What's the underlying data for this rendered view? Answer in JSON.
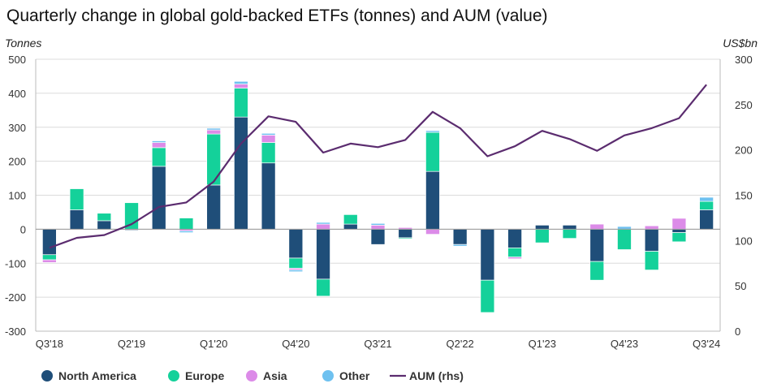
{
  "chart_data": {
    "type": "bar",
    "title": "Quarterly change in global gold-backed ETFs (tonnes) and AUM (value)",
    "ylabel_left": "Tonnes",
    "ylabel_right": "US$bn",
    "ylim_left": [
      -300,
      500
    ],
    "yticks_left": [
      -300,
      -200,
      -100,
      0,
      100,
      200,
      300,
      400,
      500
    ],
    "ylim_right": [
      0,
      300
    ],
    "yticks_right": [
      0,
      50,
      100,
      150,
      200,
      250,
      300
    ],
    "grid": true,
    "legend_position": "bottom",
    "categories": [
      "Q3'18",
      "Q4'18",
      "Q1'19",
      "Q2'19",
      "Q3'19",
      "Q4'19",
      "Q1'20",
      "Q2'20",
      "Q3'20",
      "Q4'20",
      "Q1'21",
      "Q2'21",
      "Q3'21",
      "Q4'21",
      "Q1'22",
      "Q2'22",
      "Q3'22",
      "Q4'22",
      "Q1'23",
      "Q2'23",
      "Q3'23",
      "Q4'23",
      "Q1'24",
      "Q2'24",
      "Q3'24"
    ],
    "xtick_labels": [
      "Q3'18",
      "Q2'19",
      "Q1'20",
      "Q4'20",
      "Q3'21",
      "Q2'22",
      "Q1'23",
      "Q4'23",
      "Q3'24"
    ],
    "xtick_indices": [
      0,
      3,
      6,
      9,
      12,
      15,
      18,
      21,
      24
    ],
    "series": [
      {
        "name": "North America",
        "color": "#1f4e79",
        "values": [
          -75,
          57,
          25,
          -3,
          185,
          0,
          130,
          330,
          195,
          -85,
          -147,
          15,
          -45,
          -25,
          170,
          -45,
          -150,
          -55,
          12,
          12,
          -95,
          0,
          -65,
          -10,
          57
        ]
      },
      {
        "name": "Europe",
        "color": "#14d19a",
        "values": [
          -15,
          62,
          22,
          78,
          55,
          33,
          150,
          85,
          60,
          -30,
          -50,
          28,
          0,
          -3,
          115,
          0,
          -95,
          -27,
          -40,
          -27,
          -55,
          -60,
          -55,
          -27,
          25
        ]
      },
      {
        "name": "Asia",
        "color": "#dc8be8",
        "values": [
          -8,
          0,
          0,
          0,
          15,
          -5,
          12,
          12,
          22,
          -5,
          15,
          0,
          12,
          5,
          -15,
          0,
          0,
          -5,
          0,
          0,
          15,
          0,
          10,
          32,
          0
        ]
      },
      {
        "name": "Other",
        "color": "#6ec1f0",
        "values": [
          0,
          0,
          0,
          0,
          5,
          -5,
          5,
          8,
          5,
          -5,
          5,
          0,
          5,
          0,
          5,
          -5,
          0,
          0,
          0,
          0,
          0,
          8,
          0,
          0,
          12
        ]
      }
    ],
    "line_series": {
      "name": "AUM (rhs)",
      "color": "#5b2c6f",
      "axis": "right",
      "values": [
        92,
        103,
        106,
        118,
        137,
        142,
        165,
        207,
        237,
        231,
        197,
        207,
        203,
        211,
        242,
        224,
        193,
        204,
        221,
        212,
        199,
        216,
        224,
        235,
        272
      ]
    }
  },
  "legend": [
    {
      "label": "North America",
      "color": "#1f4e79",
      "kind": "dot"
    },
    {
      "label": "Europe",
      "color": "#14d19a",
      "kind": "dot"
    },
    {
      "label": "Asia",
      "color": "#dc8be8",
      "kind": "dot"
    },
    {
      "label": "Other",
      "color": "#6ec1f0",
      "kind": "dot"
    },
    {
      "label": "AUM (rhs)",
      "color": "#5b2c6f",
      "kind": "line"
    }
  ]
}
